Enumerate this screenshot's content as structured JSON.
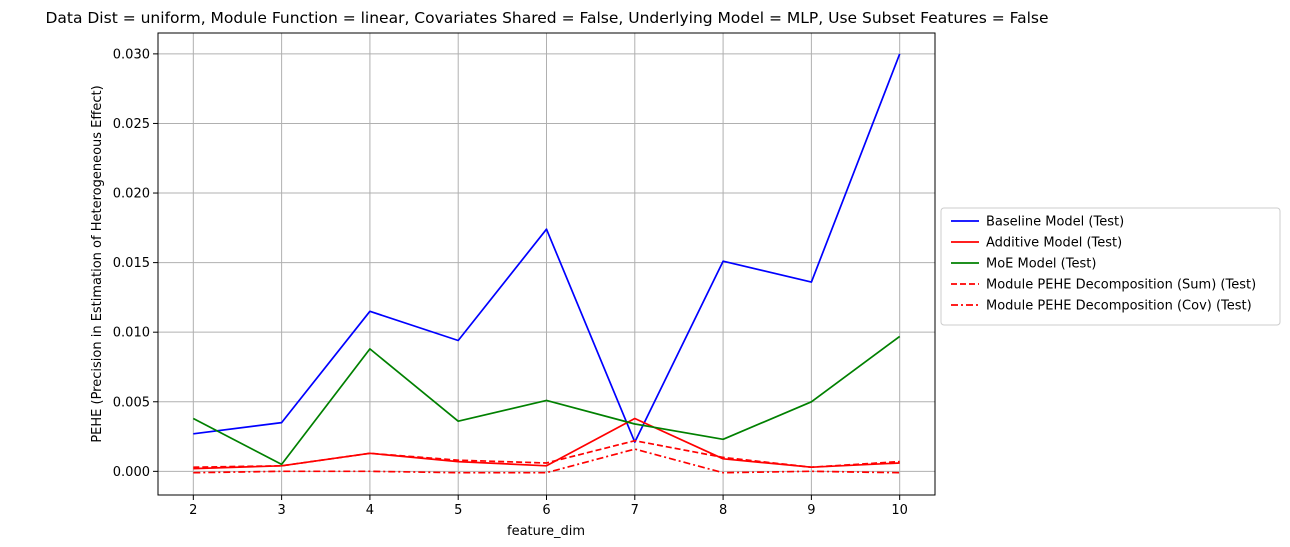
{
  "chart_data": {
    "type": "line",
    "title": "Data Dist = uniform, Module Function = linear, Covariates Shared = False, Underlying Model = MLP, Use Subset Features = False",
    "xlabel": "feature_dim",
    "ylabel": "PEHE (Precision in Estimation of Heterogeneous Effect)",
    "x": [
      2,
      3,
      4,
      5,
      6,
      7,
      8,
      9,
      10
    ],
    "xlim": [
      1.6,
      10.4
    ],
    "ylim": [
      -0.0017,
      0.0315
    ],
    "xticks": [
      "2",
      "3",
      "4",
      "5",
      "6",
      "7",
      "8",
      "9",
      "10"
    ],
    "yticks": [
      {
        "value": 0.0,
        "label": "0.000"
      },
      {
        "value": 0.005,
        "label": "0.005"
      },
      {
        "value": 0.01,
        "label": "0.010"
      },
      {
        "value": 0.015,
        "label": "0.015"
      },
      {
        "value": 0.02,
        "label": "0.020"
      },
      {
        "value": 0.025,
        "label": "0.025"
      },
      {
        "value": 0.03,
        "label": "0.030"
      }
    ],
    "grid": true,
    "legend_position": "outside-right",
    "series": [
      {
        "name": "Baseline Model (Test)",
        "color": "#0000ff",
        "dash": "solid",
        "values": [
          0.0027,
          0.0035,
          0.0115,
          0.0094,
          0.0174,
          0.0021,
          0.0151,
          0.0136,
          0.03
        ]
      },
      {
        "name": "Additive Model (Test)",
        "color": "#ff0000",
        "dash": "solid",
        "values": [
          0.0002,
          0.0004,
          0.0013,
          0.0007,
          0.0004,
          0.0038,
          0.0009,
          0.0003,
          0.0006
        ]
      },
      {
        "name": "MoE Model (Test)",
        "color": "#008000",
        "dash": "solid",
        "values": [
          0.0038,
          0.0005,
          0.0088,
          0.0036,
          0.0051,
          0.0034,
          0.0023,
          0.005,
          0.0097
        ]
      },
      {
        "name": "Module PEHE Decomposition (Sum) (Test)",
        "color": "#ff0000",
        "dash": "dashed",
        "values": [
          0.0003,
          0.0004,
          0.0013,
          0.0008,
          0.0006,
          0.0022,
          0.001,
          0.0003,
          0.0007
        ]
      },
      {
        "name": "Module PEHE Decomposition (Cov) (Test)",
        "color": "#ff0000",
        "dash": "dashdot",
        "values": [
          -0.0001,
          0.0,
          0.0,
          -0.0001,
          -0.0001,
          0.0016,
          -0.0001,
          0.0,
          -0.0001
        ]
      }
    ]
  }
}
